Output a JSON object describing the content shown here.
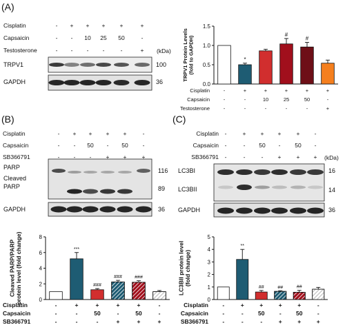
{
  "panels": {
    "A": {
      "label": "(A)",
      "blot": {
        "treatments": [
          {
            "name": "Cisplatin",
            "values": [
              "-",
              "+",
              "+",
              "+",
              "+",
              "+"
            ]
          },
          {
            "name": "Capsaicin",
            "values": [
              "-",
              "-",
              "10",
              "25",
              "50",
              "-"
            ]
          },
          {
            "name": "Testosterone",
            "values": [
              "-",
              "-",
              "-",
              "-",
              "-",
              "+"
            ]
          }
        ],
        "unit": "(kDa)",
        "rows": [
          {
            "protein": "TRPV1",
            "kda": "100",
            "intensity": [
              0.85,
              0.5,
              0.6,
              0.78,
              0.72,
              0.62
            ]
          },
          {
            "protein": "GAPDH",
            "kda": "36",
            "intensity": [
              0.95,
              0.95,
              0.95,
              0.95,
              0.92,
              0.95
            ]
          }
        ]
      },
      "chart_data": {
        "type": "bar",
        "ylabel": "TRPV1 Protein Levels\n(fold to GAPDH)",
        "ylim": [
          0,
          1.5
        ],
        "yticks": [
          "0.0",
          "0.5",
          "1.0",
          "1.5"
        ],
        "values": [
          1.0,
          0.5,
          0.86,
          1.04,
          0.96,
          0.54
        ],
        "errors": [
          0,
          0.04,
          0.04,
          0.14,
          0.12,
          0.08
        ],
        "significance": [
          "",
          "*",
          "",
          "#",
          "#",
          ""
        ],
        "colors": [
          "#ffffff",
          "#1e5c73",
          "#d12e2e",
          "#a10f1c",
          "#6e0f17",
          "#f57f1e"
        ],
        "hatch": [
          false,
          false,
          false,
          false,
          false,
          false
        ],
        "treatments": [
          {
            "name": "Cisplatin",
            "values": [
              "-",
              "+",
              "+",
              "+",
              "+",
              "+"
            ]
          },
          {
            "name": "Capsaicin",
            "values": [
              "-",
              "-",
              "10",
              "25",
              "50",
              "-"
            ]
          },
          {
            "name": "Testosterone",
            "values": [
              "-",
              "-",
              "-",
              "-",
              "-",
              "+"
            ]
          }
        ]
      }
    },
    "B": {
      "label": "(B)",
      "blot": {
        "treatments": [
          {
            "name": "Cisplatin",
            "values": [
              "-",
              "+",
              "+",
              "+",
              "+",
              "-"
            ]
          },
          {
            "name": "Capsaicin",
            "values": [
              "-",
              "-",
              "50",
              "-",
              "50",
              "-"
            ]
          },
          {
            "name": "SB366791",
            "values": [
              "-",
              "-",
              "-",
              "+",
              "+",
              "+"
            ]
          }
        ],
        "rows": [
          {
            "protein": "PARP",
            "kda": "116"
          },
          {
            "protein": "Cleaved\nPARP",
            "kda": "89"
          },
          {
            "protein": "GAPDH",
            "kda": "36"
          }
        ]
      },
      "chart_data": {
        "type": "bar",
        "ylabel": "Cleaved PARP/PARP\nprotein level (fold change)",
        "ylim": [
          0,
          8
        ],
        "yticks": [
          "0",
          "2",
          "4",
          "6",
          "8"
        ],
        "values": [
          1.0,
          5.2,
          1.25,
          2.25,
          2.2,
          1.0
        ],
        "errors": [
          0,
          0.8,
          0.15,
          0.2,
          0.2,
          0.15
        ],
        "significance": [
          "",
          "***",
          "###",
          "###",
          "###",
          ""
        ],
        "colors": [
          "#ffffff",
          "#1e5c73",
          "#d12e2e",
          "#1e5c73",
          "#a10f1c",
          "#ffffff"
        ],
        "hatch": [
          false,
          false,
          false,
          true,
          true,
          true
        ],
        "treatments": [
          {
            "name": "Cisplatin",
            "values": [
              "-",
              "+",
              "+",
              "+",
              "+",
              "-"
            ]
          },
          {
            "name": "Capsaicin",
            "values": [
              "-",
              "-",
              "50",
              "-",
              "50",
              "-"
            ]
          },
          {
            "name": "SB366791",
            "values": [
              "-",
              "-",
              "-",
              "+",
              "+",
              "+"
            ]
          }
        ]
      }
    },
    "C": {
      "label": "(C)",
      "blot": {
        "treatments": [
          {
            "name": "Cisplatin",
            "values": [
              "-",
              "+",
              "+",
              "+",
              "+",
              "-"
            ]
          },
          {
            "name": "Capsaicin",
            "values": [
              "-",
              "-",
              "50",
              "-",
              "50",
              "-"
            ]
          },
          {
            "name": "SB366791",
            "values": [
              "-",
              "-",
              "-",
              "+",
              "+",
              "+"
            ]
          }
        ],
        "unit": "(kDa)",
        "rows": [
          {
            "protein": "LC3BI",
            "kda": "16"
          },
          {
            "protein": "LC3BII",
            "kda": "14"
          },
          {
            "protein": "GAPDH",
            "kda": "36"
          }
        ]
      },
      "chart_data": {
        "type": "bar",
        "ylabel": "LC3BII protein level\n(fold change)",
        "ylim": [
          0,
          5
        ],
        "yticks": [
          "0",
          "1",
          "2",
          "3",
          "4",
          "5"
        ],
        "values": [
          1.0,
          3.2,
          0.6,
          0.65,
          0.58,
          0.82
        ],
        "errors": [
          0,
          0.8,
          0.12,
          0.05,
          0.15,
          0.15
        ],
        "significance": [
          "",
          "**",
          "##",
          "##",
          "##",
          ""
        ],
        "colors": [
          "#ffffff",
          "#1e5c73",
          "#d12e2e",
          "#1e5c73",
          "#a10f1c",
          "#ffffff"
        ],
        "hatch": [
          false,
          false,
          false,
          true,
          true,
          true
        ],
        "treatments": [
          {
            "name": "Cisplatin",
            "values": [
              "-",
              "+",
              "+",
              "+",
              "+",
              "-"
            ]
          },
          {
            "name": "Capsaicin",
            "values": [
              "-",
              "-",
              "50",
              "-",
              "50",
              "-"
            ]
          },
          {
            "name": "SB366791",
            "values": [
              "-",
              "-",
              "-",
              "+",
              "+",
              "+"
            ]
          }
        ]
      }
    }
  }
}
